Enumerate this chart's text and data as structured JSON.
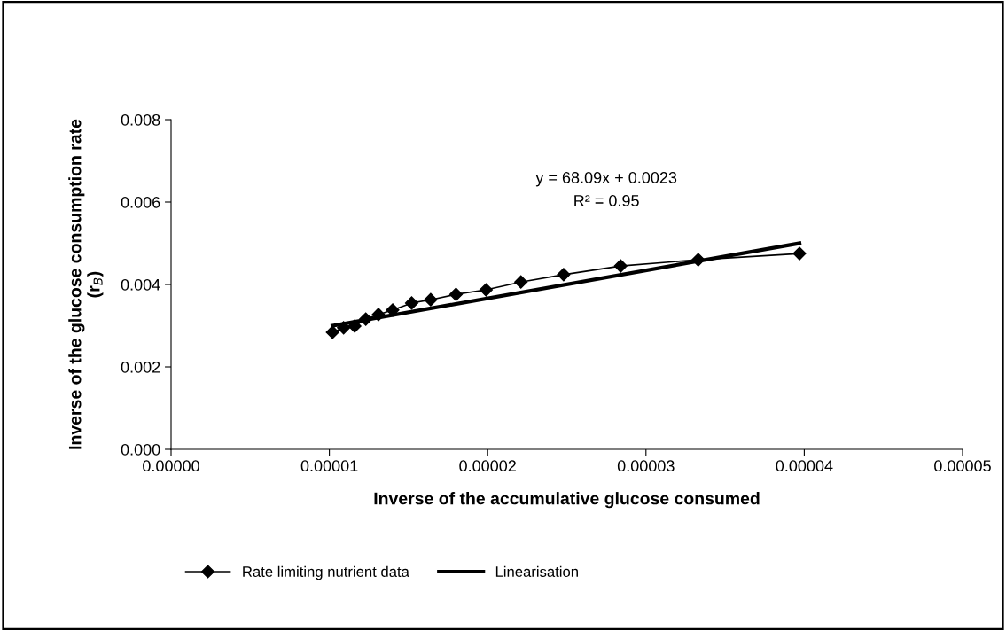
{
  "chart_data": {
    "type": "line",
    "xlabel": "Inverse of the accumulative glucose consumed",
    "ylabel": "Inverse of the glucose consumption rate\n(r$_{B}$)",
    "xlim": [
      0,
      5e-05
    ],
    "xticks": [
      {
        "value": 0,
        "label": "0.00000"
      },
      {
        "value": 1e-05,
        "label": "0.00001"
      },
      {
        "value": 2e-05,
        "label": "0.00002"
      },
      {
        "value": 3e-05,
        "label": "0.00003"
      },
      {
        "value": 4e-05,
        "label": "0.00004"
      },
      {
        "value": 5e-05,
        "label": "0.00005"
      }
    ],
    "ylim": [
      0,
      0.008
    ],
    "yticks": [
      {
        "value": 0,
        "label": "0.000"
      },
      {
        "value": 0.002,
        "label": "0.002"
      },
      {
        "value": 0.004,
        "label": "0.004"
      },
      {
        "value": 0.006,
        "label": "0.006"
      },
      {
        "value": 0.008,
        "label": "0.008"
      }
    ],
    "grid": false,
    "legend": "bottom",
    "annotations": [
      "y = 68.09x + 0.0023",
      "R² = 0.95"
    ],
    "series": [
      {
        "name": "Rate limiting nutrient data",
        "color": "#000000",
        "marker": "diamond",
        "x": [
          1.02e-05,
          1.09e-05,
          1.16e-05,
          1.23e-05,
          1.31e-05,
          1.4e-05,
          1.52e-05,
          1.64e-05,
          1.8e-05,
          1.99e-05,
          2.21e-05,
          2.48e-05,
          2.84e-05,
          3.33e-05,
          3.97e-05
        ],
        "values": [
          0.00284,
          0.00295,
          0.00299,
          0.00316,
          0.00327,
          0.00338,
          0.00355,
          0.00363,
          0.00376,
          0.00387,
          0.00406,
          0.00424,
          0.00445,
          0.0046,
          0.00475
        ]
      },
      {
        "name": "Linearisation",
        "color": "#000000",
        "marker": "none",
        "x": [
          1.02e-05,
          3.97e-05
        ],
        "values": [
          0.003,
          0.005
        ]
      }
    ]
  }
}
